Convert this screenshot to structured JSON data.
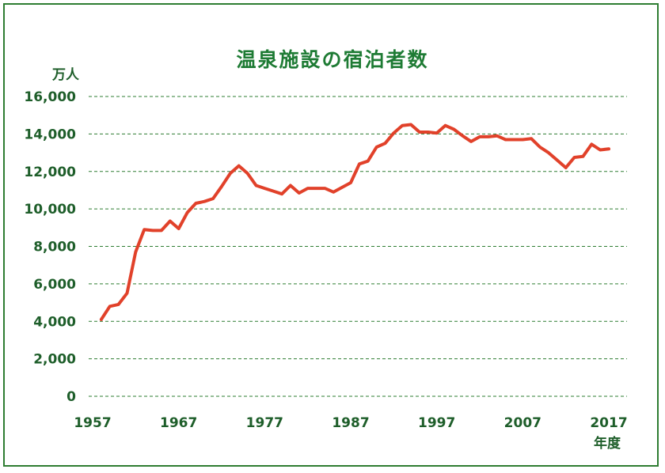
{
  "chart_data": {
    "type": "line",
    "title": "温泉施設の宿泊者数",
    "ylabel": "万人",
    "xlabel": "年度",
    "ylim": [
      0,
      16000
    ],
    "y_ticks": [
      "0",
      "2,000",
      "4,000",
      "6,000",
      "8,000",
      "10,000",
      "12,000",
      "14,000",
      "16,000"
    ],
    "x_ticks": [
      "1957",
      "1967",
      "1977",
      "1987",
      "1997",
      "2007",
      "2017"
    ],
    "grid": true,
    "line_color": "#e1412a",
    "axis_color": "#1e5e2a",
    "x": [
      1958,
      1959,
      1960,
      1961,
      1962,
      1963,
      1964,
      1965,
      1966,
      1967,
      1968,
      1969,
      1970,
      1971,
      1972,
      1973,
      1974,
      1975,
      1976,
      1977,
      1978,
      1979,
      1980,
      1981,
      1982,
      1983,
      1984,
      1985,
      1986,
      1987,
      1988,
      1989,
      1990,
      1991,
      1992,
      1993,
      1994,
      1995,
      1996,
      1997,
      1998,
      1999,
      2000,
      2001,
      2002,
      2003,
      2004,
      2005,
      2006,
      2007,
      2008,
      2009,
      2010,
      2011,
      2012,
      2013,
      2014,
      2015,
      2016,
      2017
    ],
    "values": [
      4100,
      4800,
      4900,
      5500,
      7700,
      8900,
      8850,
      8850,
      9350,
      8950,
      9800,
      10300,
      10400,
      10550,
      11200,
      11900,
      12300,
      11900,
      11250,
      11100,
      10950,
      10800,
      11250,
      10850,
      11100,
      11100,
      11100,
      10900,
      11150,
      11400,
      12400,
      12550,
      13300,
      13500,
      14050,
      14450,
      14500,
      14100,
      14100,
      14050,
      14450,
      14250,
      13900,
      13600,
      13850,
      13850,
      13900,
      13700,
      13700,
      13700,
      13750,
      13300,
      13000,
      12600,
      12200,
      12750,
      12800,
      13450,
      13150,
      13200
    ]
  }
}
